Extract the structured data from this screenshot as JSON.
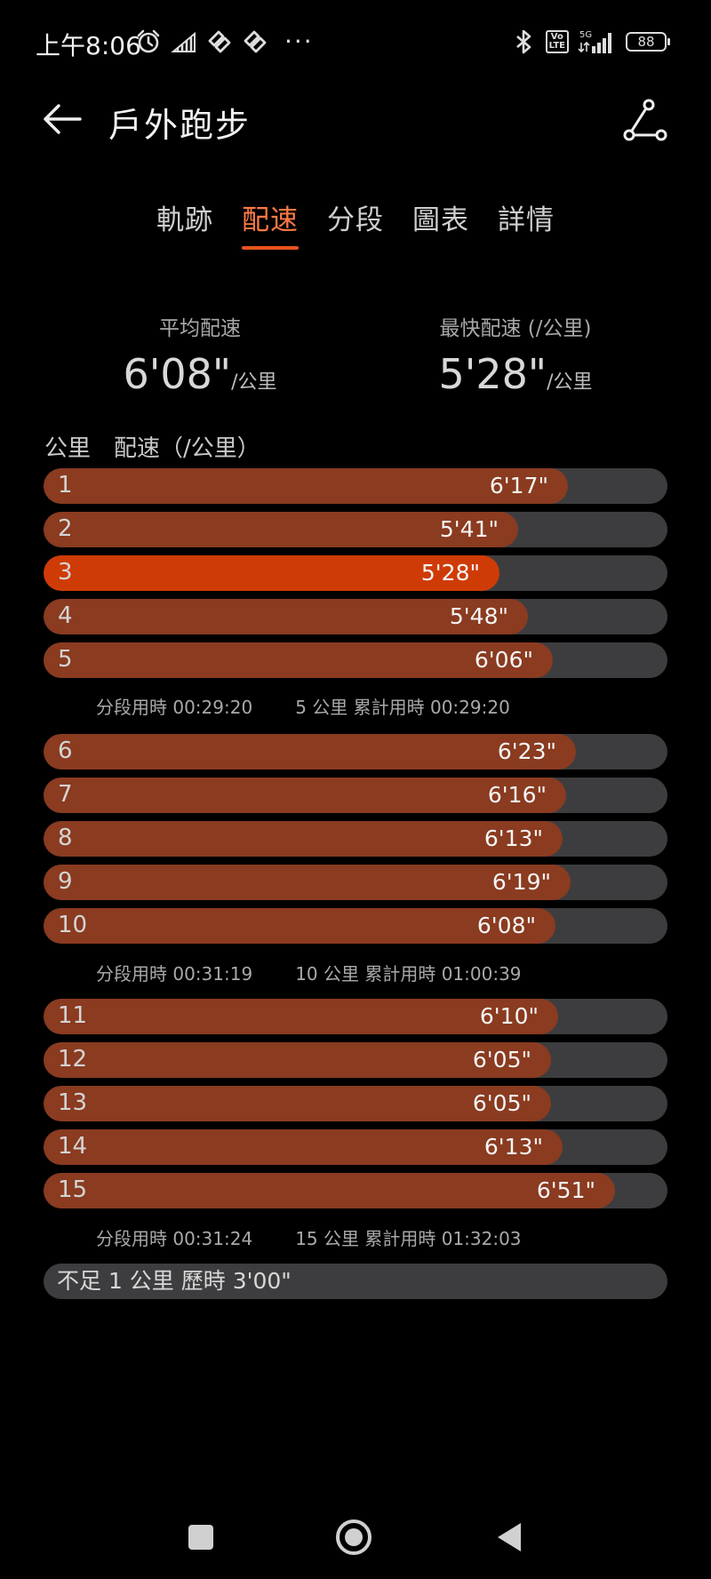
{
  "status_bar": {
    "time": "上午8:06",
    "network": "5G",
    "battery": "88",
    "volte": "Vo\nLTE"
  },
  "header": {
    "title": "戶外跑步"
  },
  "tabs": [
    {
      "label": "軌跡",
      "active": false
    },
    {
      "label": "配速",
      "active": true
    },
    {
      "label": "分段",
      "active": false
    },
    {
      "label": "圖表",
      "active": false
    },
    {
      "label": "詳情",
      "active": false
    }
  ],
  "summary": {
    "avg_label": "平均配速",
    "avg_value": "6'08\"",
    "avg_unit": "/公里",
    "fastest_label": "最快配速 (/公里)",
    "fastest_value": "5'28\"",
    "fastest_unit": "/公里"
  },
  "list_header": {
    "km_label": "公里",
    "pace_label": "配速（/公里）"
  },
  "laps": [
    {
      "km": "1",
      "pace": "6'17\"",
      "seconds": 377
    },
    {
      "km": "2",
      "pace": "5'41\"",
      "seconds": 341
    },
    {
      "km": "3",
      "pace": "5'28\"",
      "seconds": 328,
      "fastest": true
    },
    {
      "km": "4",
      "pace": "5'48\"",
      "seconds": 348
    },
    {
      "km": "5",
      "pace": "6'06\"",
      "seconds": 366
    },
    {
      "km": "6",
      "pace": "6'23\"",
      "seconds": 383
    },
    {
      "km": "7",
      "pace": "6'16\"",
      "seconds": 376
    },
    {
      "km": "8",
      "pace": "6'13\"",
      "seconds": 373
    },
    {
      "km": "9",
      "pace": "6'19\"",
      "seconds": 379
    },
    {
      "km": "10",
      "pace": "6'08\"",
      "seconds": 368
    },
    {
      "km": "11",
      "pace": "6'10\"",
      "seconds": 370
    },
    {
      "km": "12",
      "pace": "6'05\"",
      "seconds": 365
    },
    {
      "km": "13",
      "pace": "6'05\"",
      "seconds": 365
    },
    {
      "km": "14",
      "pace": "6'13\"",
      "seconds": 373
    },
    {
      "km": "15",
      "pace": "6'51\"",
      "seconds": 411
    }
  ],
  "splits": [
    {
      "segment": "分段用時 00:29:20",
      "cumulative": "5 公里 累計用時 00:29:20"
    },
    {
      "segment": "分段用時 00:31:19",
      "cumulative": "10 公里 累計用時 01:00:39"
    },
    {
      "segment": "分段用時 00:31:24",
      "cumulative": "15 公里 累計用時 01:32:03"
    }
  ],
  "remainder": "不足 1 公里 歷時 3'00\"",
  "colors": {
    "accent": "#e8531e",
    "bar_fill": "#8a3b20",
    "bar_fastest": "#cf3b06",
    "bar_track": "#3d3d3f"
  }
}
